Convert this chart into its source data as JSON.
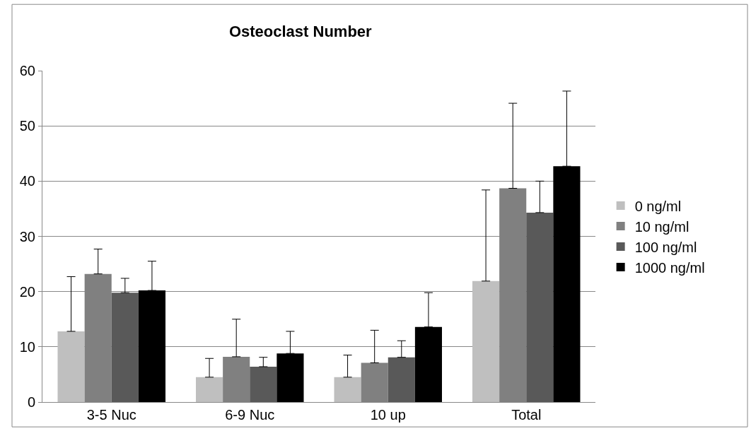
{
  "chart_data": {
    "type": "bar",
    "title": "Osteoclast Number",
    "categories": [
      "3-5 Nuc",
      "6-9 Nuc",
      "10 up",
      "Total"
    ],
    "series": [
      {
        "name": "0 ng/ml",
        "color": "#bfbfbf",
        "values": [
          12.8,
          4.5,
          4.5,
          21.9
        ],
        "errors": [
          [
            12.8,
            22.7
          ],
          [
            4.5,
            7.9
          ],
          [
            4.5,
            8.5
          ],
          [
            21.9,
            38.4
          ]
        ]
      },
      {
        "name": "10 ng/ml",
        "color": "#808080",
        "values": [
          23.2,
          8.2,
          7.1,
          38.7
        ],
        "errors": [
          [
            23.2,
            27.7
          ],
          [
            8.2,
            15.0
          ],
          [
            7.1,
            13.0
          ],
          [
            38.7,
            54.1
          ]
        ]
      },
      {
        "name": "100 ng/ml",
        "color": "#595959",
        "values": [
          19.8,
          6.4,
          8.1,
          34.3
        ],
        "errors": [
          [
            19.8,
            22.4
          ],
          [
            6.4,
            8.1
          ],
          [
            8.1,
            11.1
          ],
          [
            34.3,
            40.0
          ]
        ]
      },
      {
        "name": "1000 ng/ml",
        "color": "#000000",
        "values": [
          20.2,
          8.8,
          13.6,
          42.7
        ],
        "errors": [
          [
            20.2,
            25.5
          ],
          [
            8.8,
            12.8
          ],
          [
            13.6,
            19.8
          ],
          [
            42.7,
            56.3
          ]
        ]
      }
    ],
    "ylim": [
      0,
      60
    ],
    "yticks": [
      0,
      10,
      20,
      30,
      40,
      50,
      60
    ],
    "grid": "y",
    "legend": "right"
  }
}
